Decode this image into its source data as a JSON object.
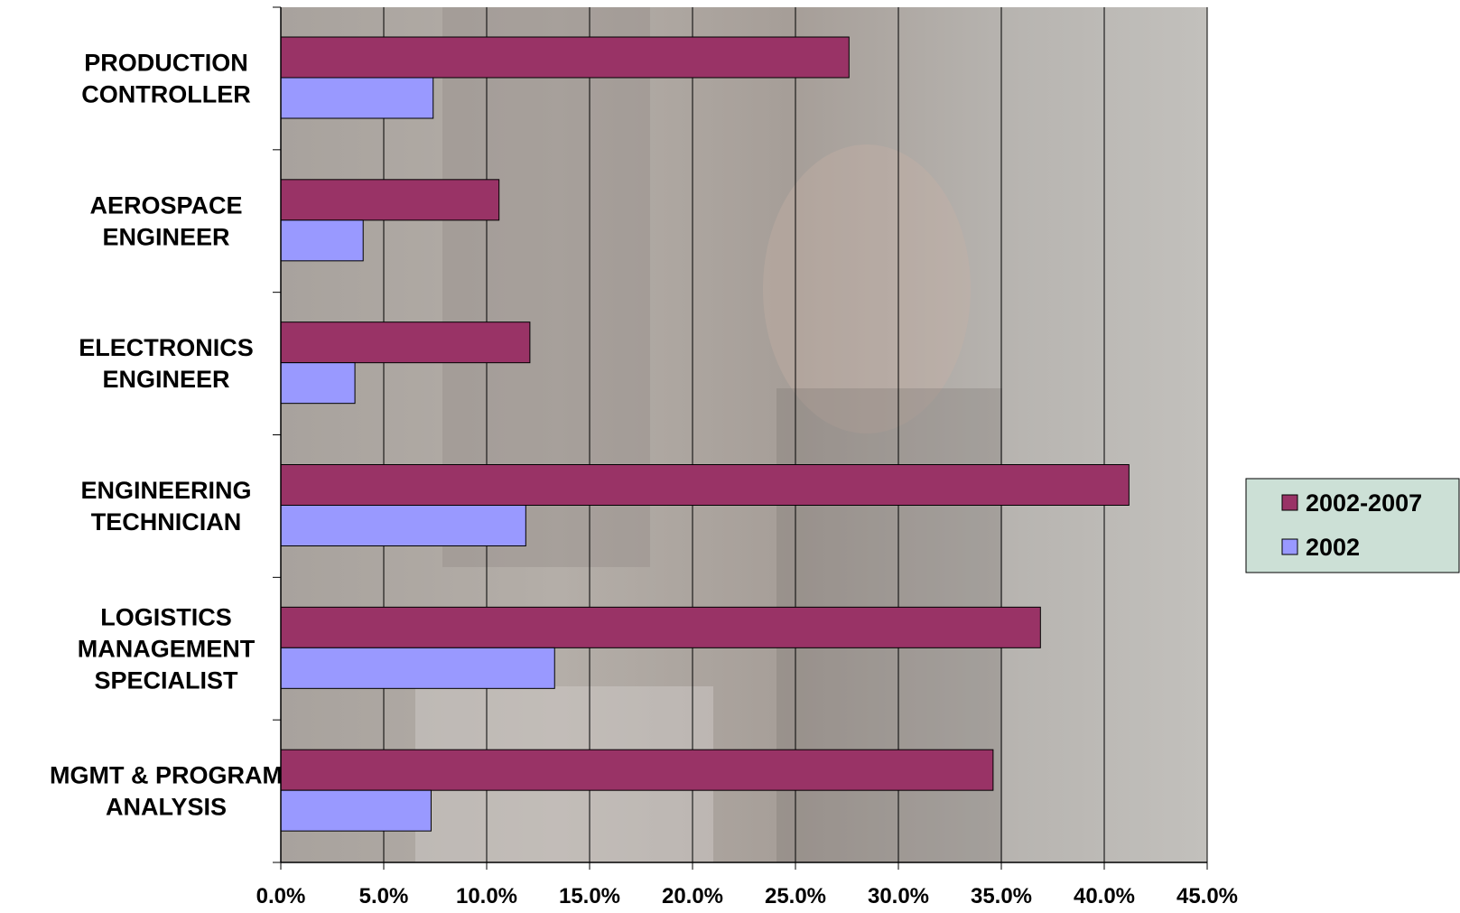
{
  "chart_data": {
    "type": "bar",
    "orientation": "horizontal",
    "categories": [
      [
        "PRODUCTION",
        "CONTROLLER"
      ],
      [
        "AEROSPACE",
        "ENGINEER"
      ],
      [
        "ELECTRONICS",
        "ENGINEER"
      ],
      [
        "ENGINEERING",
        "TECHNICIAN"
      ],
      [
        "LOGISTICS",
        "MANAGEMENT",
        "SPECIALIST"
      ],
      [
        "MGMT & PROGRAM",
        "ANALYSIS"
      ]
    ],
    "series": [
      {
        "name": "2002-2007",
        "color": "#993366",
        "values": [
          27.6,
          10.6,
          12.1,
          41.2,
          36.9,
          34.6
        ]
      },
      {
        "name": "2002",
        "color": "#9999ff",
        "values": [
          7.4,
          4.0,
          3.6,
          11.9,
          13.3,
          7.3
        ]
      }
    ],
    "xlim": [
      0,
      45
    ],
    "xticks": [
      "0.0%",
      "5.0%",
      "10.0%",
      "15.0%",
      "20.0%",
      "25.0%",
      "30.0%",
      "35.0%",
      "40.0%",
      "45.0%"
    ],
    "grid": "vertical",
    "legend": "right",
    "legend_background": "#cce0d6",
    "plot_background": "#b9b6b2",
    "title": "",
    "xlabel": "",
    "ylabel": ""
  }
}
